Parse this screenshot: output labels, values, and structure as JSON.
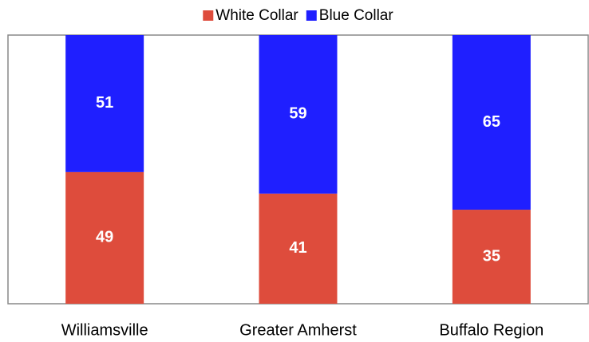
{
  "chart_data": {
    "type": "stacked_bar",
    "categories": [
      "Williamsville",
      "Greater Amherst",
      "Buffalo Region"
    ],
    "series": [
      {
        "name": "White Collar",
        "color": "#de4c3c",
        "values": [
          49,
          41,
          35
        ]
      },
      {
        "name": "Blue Collar",
        "color": "#1f1fff",
        "values": [
          51,
          59,
          65
        ]
      }
    ],
    "ylim": [
      0,
      100
    ],
    "legend": "top"
  }
}
